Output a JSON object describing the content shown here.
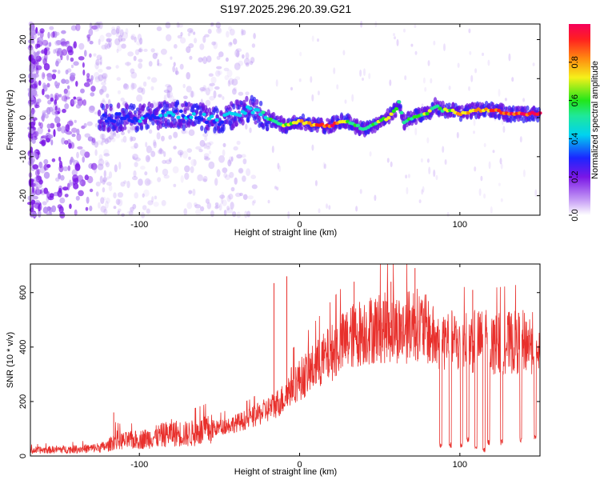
{
  "title": "S197.2025.296.20.39.G21",
  "chart_data": [
    {
      "type": "heatmap",
      "name": "spectrogram",
      "xlabel": "Height of straight line (km)",
      "ylabel": "Frequency (Hz)",
      "xlim": [
        -168,
        150
      ],
      "ylim": [
        -25,
        24
      ],
      "xticks": [
        -100,
        0,
        100
      ],
      "yticks": [
        -20,
        -10,
        0,
        10,
        20
      ],
      "colorbar": {
        "label": "Normalized spectral amplitude",
        "range": [
          0,
          1
        ],
        "ticks": [
          0.0,
          0.2,
          0.4,
          0.6,
          0.8
        ],
        "tick_labels": [
          "0.0",
          "0.2",
          "0.4",
          "0.6",
          "0.8"
        ]
      },
      "ridge": {
        "description": "Dominant frequency track (Hz) versus height (km)",
        "x": [
          -120,
          -100,
          -80,
          -60,
          -50,
          -40,
          -30,
          -20,
          -10,
          0,
          10,
          20,
          25,
          30,
          40,
          45,
          50,
          55,
          60,
          62,
          65,
          70,
          80,
          85,
          88,
          95,
          100,
          110,
          120,
          130,
          140,
          150
        ],
        "y": [
          0,
          0,
          1,
          0,
          -1,
          1,
          2,
          0,
          -2,
          -1,
          -2,
          -2,
          -1,
          -1,
          -3,
          -2,
          -1,
          0,
          2,
          4,
          -1,
          0,
          1,
          3,
          2,
          2,
          1,
          2,
          2,
          1,
          1,
          1
        ],
        "amplitude": [
          0.25,
          0.3,
          0.3,
          0.3,
          0.3,
          0.35,
          0.35,
          0.45,
          0.6,
          0.7,
          0.8,
          0.9,
          0.75,
          0.6,
          0.5,
          0.55,
          0.6,
          0.65,
          0.55,
          0.45,
          0.5,
          0.55,
          0.6,
          0.5,
          0.55,
          0.6,
          0.7,
          0.75,
          0.8,
          0.85,
          0.9,
          0.9
        ]
      }
    },
    {
      "type": "line",
      "name": "snr",
      "xlabel": "Height of straight line (km)",
      "ylabel": "SNR (10 * v/v)",
      "xlim": [
        -168,
        150
      ],
      "ylim": [
        0,
        705
      ],
      "xticks": [
        -100,
        0,
        100
      ],
      "yticks": [
        0,
        200,
        400,
        600
      ],
      "color": "#e8302c",
      "x": [
        -168,
        -160,
        -150,
        -140,
        -130,
        -120,
        -115,
        -110,
        -100,
        -90,
        -80,
        -70,
        -60,
        -50,
        -40,
        -30,
        -20,
        -10,
        -5,
        0,
        10,
        20,
        30,
        40,
        50,
        60,
        65,
        70,
        75,
        80,
        85,
        90,
        95,
        100,
        110,
        115,
        120,
        130,
        140,
        150
      ],
      "y": [
        20,
        22,
        24,
        25,
        28,
        35,
        60,
        55,
        60,
        70,
        85,
        80,
        90,
        105,
        120,
        140,
        170,
        210,
        260,
        280,
        330,
        380,
        430,
        460,
        470,
        470,
        460,
        490,
        480,
        460,
        420,
        430,
        420,
        410,
        420,
        425,
        410,
        415,
        420,
        410
      ],
      "spikes": [
        {
          "x": 108,
          "y": 610
        },
        {
          "x": 72,
          "y": 690
        },
        {
          "x": 57,
          "y": 640
        },
        {
          "x": 34,
          "y": 640
        },
        {
          "x": -8,
          "y": 660
        },
        {
          "x": -16,
          "y": 635
        },
        {
          "x": -116,
          "y": 160
        }
      ],
      "dropouts": [
        {
          "x": 88,
          "y": 30
        },
        {
          "x": 94,
          "y": 30
        },
        {
          "x": 101,
          "y": 30
        },
        {
          "x": 105,
          "y": 50
        },
        {
          "x": 110,
          "y": 20
        },
        {
          "x": 115,
          "y": 10
        },
        {
          "x": 118,
          "y": 40
        },
        {
          "x": 126,
          "y": 40
        },
        {
          "x": 138,
          "y": 50
        },
        {
          "x": 147,
          "y": 60
        }
      ]
    }
  ]
}
